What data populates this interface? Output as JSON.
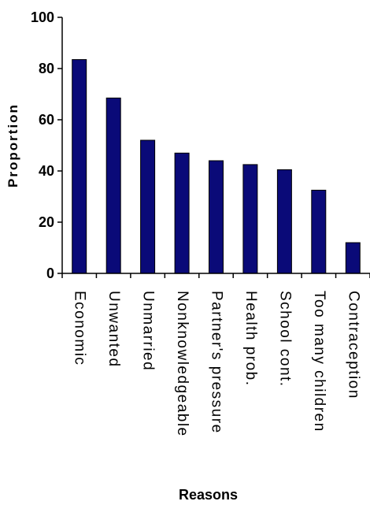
{
  "chart_data": {
    "type": "bar",
    "title": "",
    "xlabel": "Reasons",
    "ylabel": "Proportion",
    "ylim": [
      0,
      100
    ],
    "yticks": [
      0,
      20,
      40,
      60,
      80,
      100
    ],
    "grid": false,
    "legend": "none",
    "categories": [
      "Economic",
      "Unwanted",
      "Unmarried",
      "Nonknowledgeable",
      "Partner's pressure",
      "Health prob.",
      "School cont.",
      "Too many children",
      "Contraception"
    ],
    "values": [
      83.5,
      68.5,
      52,
      47,
      44,
      42.5,
      40.5,
      32.5,
      12
    ],
    "bar_color": "#0a0a78"
  }
}
